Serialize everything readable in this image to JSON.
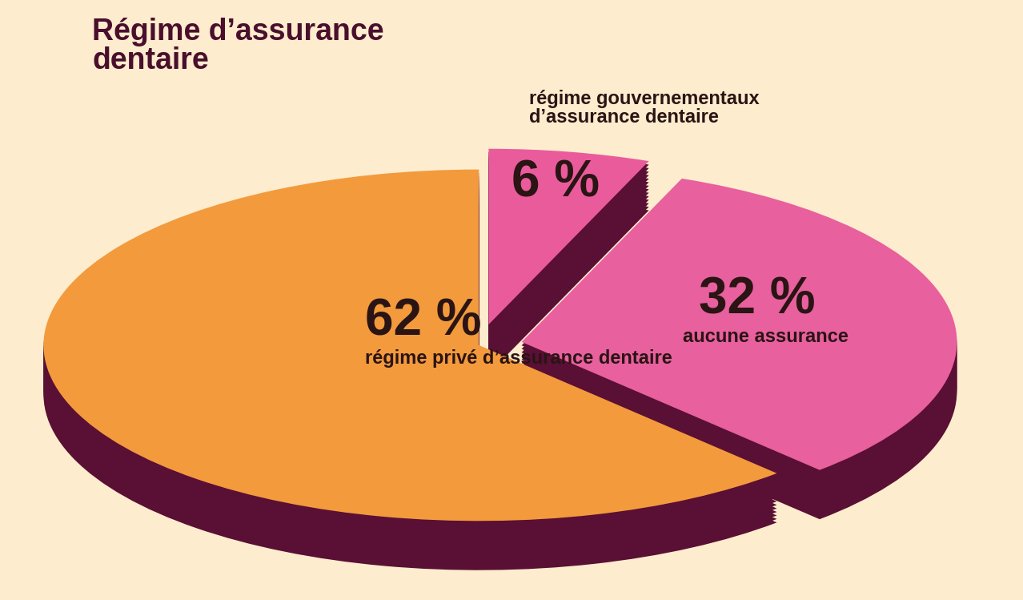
{
  "chart_data": {
    "type": "pie",
    "title": "Régime d’assurance dentaire",
    "categories": [
      "régime privé d’assurance dentaire",
      "aucune assurance",
      "régime gouvernementaux d’assurance dentaire"
    ],
    "values": [
      62,
      32,
      6
    ],
    "value_labels": [
      "62 %",
      "32 %",
      "6 %"
    ],
    "colors": [
      "#f39a3c",
      "#e8609e",
      "#ea5b9c"
    ],
    "data_labels": true
  }
}
